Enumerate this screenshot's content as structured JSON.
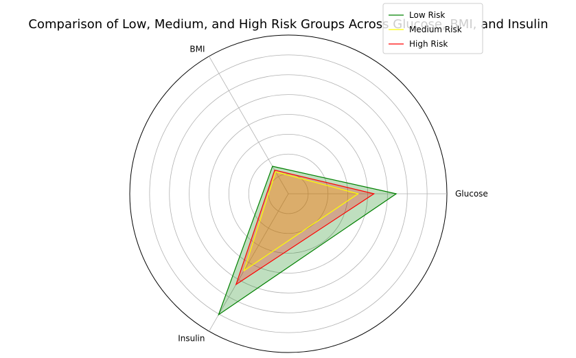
{
  "chart_data": {
    "type": "radar",
    "title": "Comparison of Low, Medium, and High Risk Groups Across Glucose, BMI, and Insulin",
    "axes": [
      "Glucose",
      "BMI",
      "Insulin"
    ],
    "rlim": [
      0,
      250
    ],
    "grid": true,
    "legend_position": "top-right",
    "series": [
      {
        "name": "Low Risk",
        "values": [
          170,
          50,
          220
        ],
        "color": "#008000",
        "fill": true
      },
      {
        "name": "Medium Risk",
        "values": [
          110,
          40,
          140
        ],
        "color": "#ffff00",
        "fill": true
      },
      {
        "name": "High Risk",
        "values": [
          135,
          43,
          165
        ],
        "color": "#ff0000",
        "fill": true
      }
    ]
  }
}
